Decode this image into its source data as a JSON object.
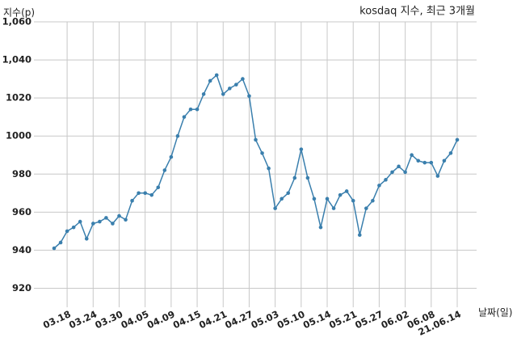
{
  "chart_data": {
    "type": "line",
    "title": "kosdaq 지수, 최근 3개월",
    "y_label": "지수(p)",
    "x_label": "날짜(일)",
    "categories": [
      null,
      null,
      "03.18",
      null,
      null,
      null,
      "03.24",
      null,
      null,
      null,
      "03.30",
      null,
      null,
      null,
      "04.05",
      null,
      null,
      null,
      "04.09",
      null,
      null,
      null,
      "04.15",
      null,
      null,
      null,
      "04.21",
      null,
      null,
      null,
      "04.27",
      null,
      null,
      null,
      "05.03",
      null,
      null,
      null,
      "05.10",
      null,
      null,
      null,
      "05.14",
      null,
      null,
      null,
      "05.21",
      null,
      null,
      null,
      "05.27",
      null,
      null,
      null,
      "06.02",
      null,
      null,
      null,
      "06.08",
      null,
      null,
      null,
      "21.06.14"
    ],
    "series": [
      {
        "name": "kosdaq",
        "color": "#3a7fad",
        "values": [
          941,
          944,
          950,
          952,
          955,
          946,
          954,
          955,
          957,
          954,
          958,
          956,
          966,
          970,
          970,
          969,
          973,
          982,
          989,
          1000,
          1010,
          1014,
          1014,
          1022,
          1029,
          1032,
          1022,
          1025,
          1027,
          1030,
          1021,
          998,
          991,
          983,
          962,
          967,
          970,
          978,
          993,
          978,
          967,
          952,
          967,
          962,
          969,
          971,
          966,
          948,
          962,
          966,
          974,
          977,
          981,
          984,
          981,
          990,
          987,
          986,
          986,
          979,
          987,
          991,
          998
        ]
      }
    ],
    "ylim": [
      910,
      1060
    ],
    "yticks": [
      920,
      940,
      960,
      980,
      1000,
      1020,
      {
        "value": 1040,
        "label": "1,040"
      },
      {
        "value": 1060,
        "label": "1,060"
      }
    ],
    "grid": true
  }
}
